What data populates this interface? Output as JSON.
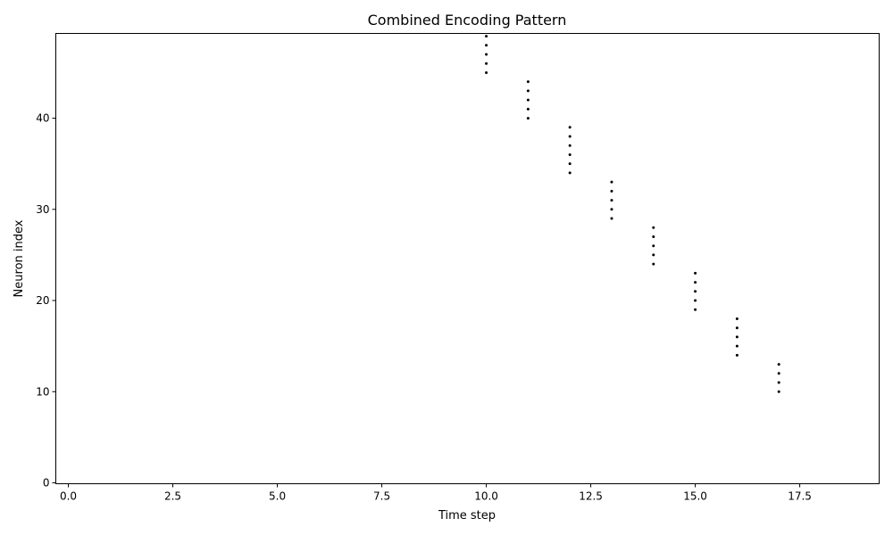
{
  "chart_data": {
    "type": "scatter",
    "title": "Combined Encoding Pattern",
    "xlabel": "Time step",
    "ylabel": "Neuron index",
    "xlim": [
      -0.3,
      19.4
    ],
    "ylim": [
      -0.1,
      49.3
    ],
    "xticks": [
      0.0,
      2.5,
      5.0,
      7.5,
      10.0,
      12.5,
      15.0,
      17.5
    ],
    "xtick_labels": [
      "0.0",
      "2.5",
      "5.0",
      "7.5",
      "10.0",
      "12.5",
      "15.0",
      "17.5"
    ],
    "yticks": [
      0,
      10,
      20,
      30,
      40
    ],
    "ytick_labels": [
      "0",
      "10",
      "20",
      "30",
      "40"
    ],
    "grid": false,
    "marker_color": "#000000",
    "points": [
      {
        "x": 10,
        "y": 45
      },
      {
        "x": 10,
        "y": 46
      },
      {
        "x": 10,
        "y": 47
      },
      {
        "x": 10,
        "y": 48
      },
      {
        "x": 10,
        "y": 49
      },
      {
        "x": 11,
        "y": 40
      },
      {
        "x": 11,
        "y": 41
      },
      {
        "x": 11,
        "y": 42
      },
      {
        "x": 11,
        "y": 43
      },
      {
        "x": 11,
        "y": 44
      },
      {
        "x": 12,
        "y": 34
      },
      {
        "x": 12,
        "y": 35
      },
      {
        "x": 12,
        "y": 36
      },
      {
        "x": 12,
        "y": 37
      },
      {
        "x": 12,
        "y": 38
      },
      {
        "x": 12,
        "y": 39
      },
      {
        "x": 13,
        "y": 29
      },
      {
        "x": 13,
        "y": 30
      },
      {
        "x": 13,
        "y": 31
      },
      {
        "x": 13,
        "y": 32
      },
      {
        "x": 13,
        "y": 33
      },
      {
        "x": 14,
        "y": 24
      },
      {
        "x": 14,
        "y": 25
      },
      {
        "x": 14,
        "y": 26
      },
      {
        "x": 14,
        "y": 27
      },
      {
        "x": 14,
        "y": 28
      },
      {
        "x": 15,
        "y": 19
      },
      {
        "x": 15,
        "y": 20
      },
      {
        "x": 15,
        "y": 21
      },
      {
        "x": 15,
        "y": 22
      },
      {
        "x": 15,
        "y": 23
      },
      {
        "x": 16,
        "y": 14
      },
      {
        "x": 16,
        "y": 15
      },
      {
        "x": 16,
        "y": 16
      },
      {
        "x": 16,
        "y": 17
      },
      {
        "x": 16,
        "y": 18
      },
      {
        "x": 17,
        "y": 10
      },
      {
        "x": 17,
        "y": 11
      },
      {
        "x": 17,
        "y": 12
      },
      {
        "x": 17,
        "y": 13
      }
    ]
  }
}
